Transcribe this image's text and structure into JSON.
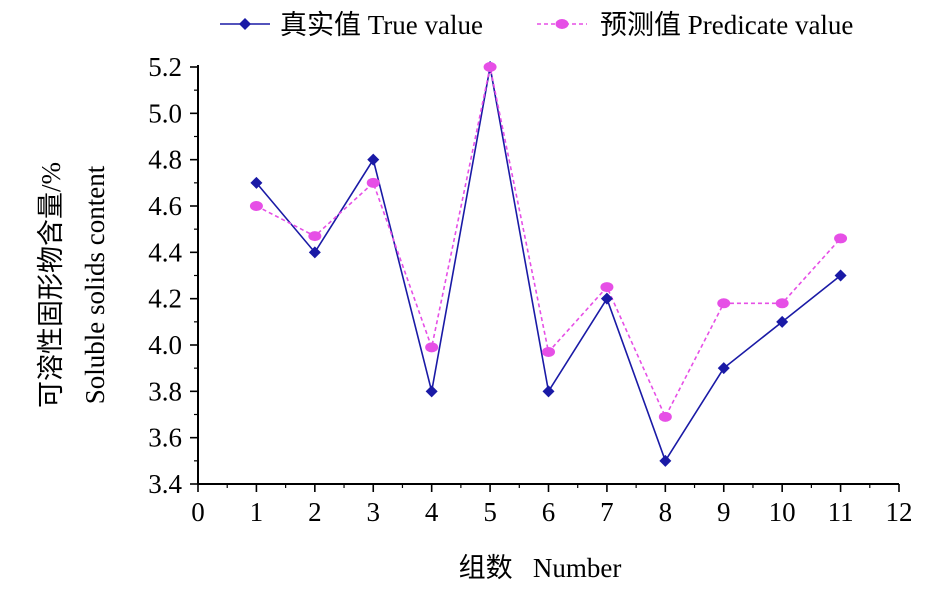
{
  "chart_data": {
    "type": "line",
    "xlabel": "组数   Number",
    "ylabel_cn": "可溶性固形物含量/%",
    "ylabel_en": "Soluble solids content",
    "xlim": [
      0,
      12
    ],
    "ylim": [
      3.4,
      5.2
    ],
    "xticks": [
      0,
      1,
      2,
      3,
      4,
      5,
      6,
      7,
      8,
      9,
      10,
      11,
      12
    ],
    "yticks": [
      3.4,
      3.6,
      3.8,
      4.0,
      4.2,
      4.4,
      4.6,
      4.8,
      5.0,
      5.2
    ],
    "ytick_labels": [
      "3.4",
      "3.6",
      "3.8",
      "4.0",
      "4.2",
      "4.4",
      "4.6",
      "4.8",
      "5.0",
      "5.2"
    ],
    "grid": false,
    "legend_position": "top",
    "x": [
      1,
      2,
      3,
      4,
      5,
      6,
      7,
      8,
      9,
      10,
      11
    ],
    "series": [
      {
        "name": "真实值 True value",
        "values": [
          4.7,
          4.4,
          4.8,
          3.8,
          5.2,
          3.8,
          4.2,
          3.5,
          3.9,
          4.1,
          4.3
        ],
        "color": "#1a1aa6",
        "marker": "diamond",
        "line": "solid"
      },
      {
        "name": "预测值 Predicate value",
        "values": [
          4.6,
          4.47,
          4.7,
          3.99,
          5.2,
          3.97,
          4.25,
          3.69,
          4.18,
          4.18,
          4.46
        ],
        "color": "#e64fe6",
        "marker": "circle",
        "line": "dashed"
      }
    ]
  }
}
